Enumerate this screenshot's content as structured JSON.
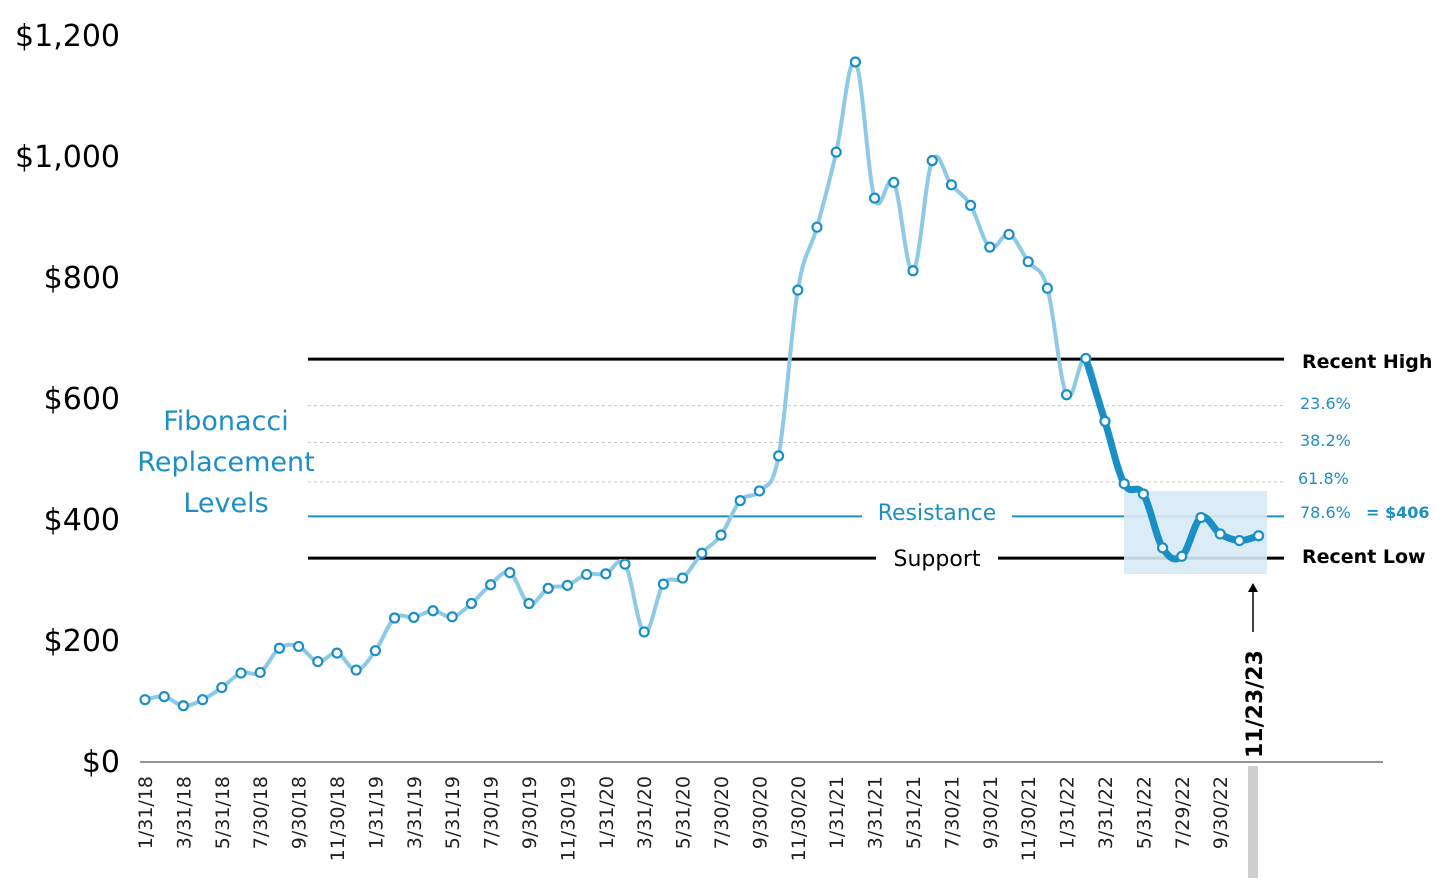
{
  "chart_data": {
    "type": "line",
    "y_ticks": [
      "$0",
      "$200",
      "$400",
      "$600",
      "$800",
      "$1,000",
      "$1,200"
    ],
    "y_tick_values": [
      0,
      200,
      400,
      600,
      800,
      1000,
      1200
    ],
    "ylim": [
      0,
      1200
    ],
    "x_tick_labels": [
      "1/31/18",
      "3/31/18",
      "5/31/18",
      "7/30/18",
      "9/30/18",
      "11/30/18",
      "1/31/19",
      "3/31/19",
      "5/31/19",
      "7/30/19",
      "9/30/19",
      "11/30/19",
      "1/31/20",
      "3/31/20",
      "5/31/20",
      "7/30/20",
      "9/30/20",
      "11/30/20",
      "1/31/21",
      "3/31/21",
      "5/31/21",
      "7/30/21",
      "9/30/21",
      "11/30/21",
      "1/31/22",
      "3/31/22",
      "5/31/22",
      "7/29/22",
      "9/30/22"
    ],
    "values": [
      103,
      108,
      93,
      103,
      123,
      147,
      148,
      188,
      191,
      166,
      180,
      152,
      184,
      238,
      239,
      250,
      240,
      262,
      293,
      313,
      262,
      287,
      292,
      310,
      311,
      327,
      215,
      294,
      304,
      345,
      375,
      432,
      448,
      506,
      780,
      884,
      1008,
      1157,
      932,
      958,
      812,
      994,
      954,
      920,
      851,
      872,
      827,
      783,
      607,
      667,
      563,
      460,
      443,
      354,
      340,
      404,
      377,
      366,
      374
    ],
    "highlight_start_index": 49,
    "levels": {
      "recent_high": {
        "label": "Recent High",
        "value": 666
      },
      "recent_low": {
        "label": "Recent Low",
        "value": 337
      },
      "fib_23": {
        "label": "23.6%",
        "value": 589
      },
      "fib_38": {
        "label": "38.2%",
        "value": 528
      },
      "fib_61": {
        "label": "61.8%",
        "value": 463
      },
      "fib_78": {
        "label": "78.6%",
        "value": 406,
        "value_label": "= $406"
      }
    },
    "annotations": {
      "fibonacci_title": [
        "Fibonacci",
        "Replacement",
        "Levels"
      ],
      "resistance": "Resistance",
      "support": "Support",
      "current_date": "11/23/23"
    },
    "colors": {
      "line": "#8ecae6",
      "highlight_line": "#1a8fc6",
      "marker": "#1a8fc6",
      "annotation": "#1e8fc4",
      "box": "#d7eaf5"
    }
  }
}
